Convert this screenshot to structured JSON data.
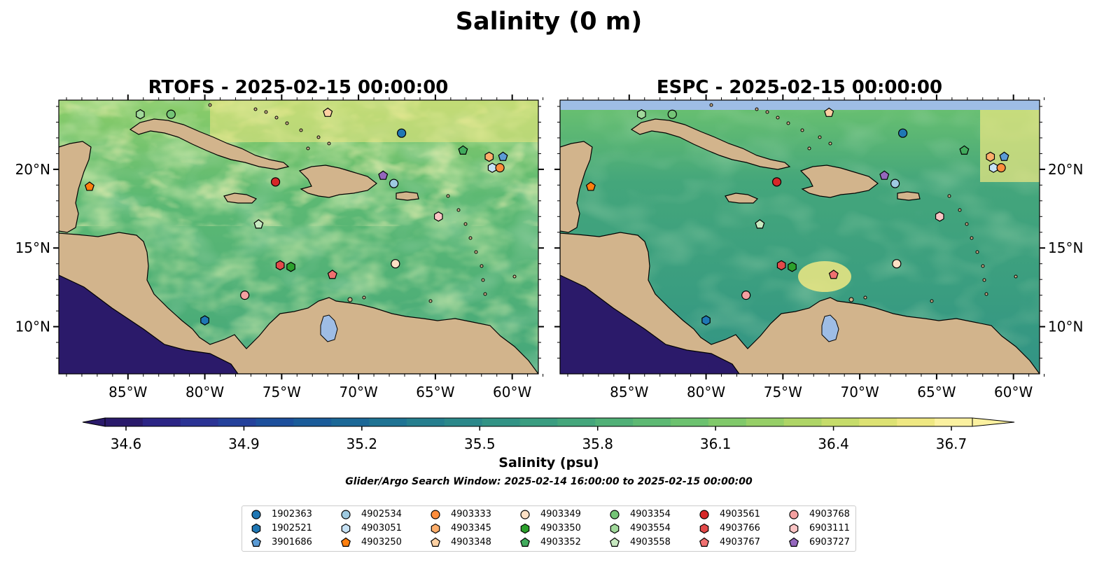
{
  "figure_title": "Salinity (0 m)",
  "panels": [
    {
      "title": "RTOFS - 2025-02-15 00:00:00"
    },
    {
      "title": "ESPC - 2025-02-15 00:00:00"
    }
  ],
  "lon_ticks": [
    "85°W",
    "80°W",
    "75°W",
    "70°W",
    "65°W",
    "60°W"
  ],
  "lat_ticks": [
    "20°N",
    "15°N",
    "10°N"
  ],
  "colorbar": {
    "label": "Salinity (psu)",
    "ticks": [
      "34.6",
      "34.9",
      "35.2",
      "35.5",
      "35.8",
      "36.1",
      "36.4",
      "36.7"
    ],
    "colors": [
      "#2a1a6b",
      "#2c2585",
      "#2b3394",
      "#24419b",
      "#1c4f9c",
      "#1a5c9a",
      "#1b6897",
      "#1f7393",
      "#257e8e",
      "#2b888a",
      "#329385",
      "#3a9d80",
      "#44a67b",
      "#50b077",
      "#5db973",
      "#6cc26f",
      "#80c96a",
      "#96cf67",
      "#aed566",
      "#c6dc6a",
      "#dde273",
      "#efe882",
      "#fbf1a0"
    ]
  },
  "search_window": "Glider/Argo Search Window: 2025-02-14 16:00:00 to 2025-02-15 00:00:00",
  "colors": {
    "land": "#d2b48c",
    "lake": "#9ebde5",
    "deep": "#2b1a6a"
  },
  "legend": [
    {
      "label": "1902363",
      "marker": "circle",
      "color": "#1f77b4"
    },
    {
      "label": "1902521",
      "marker": "hexagon",
      "color": "#1f77b4"
    },
    {
      "label": "3901686",
      "marker": "pentagon",
      "color": "#5b9bd5"
    },
    {
      "label": "4902534",
      "marker": "circle",
      "color": "#9ecae1"
    },
    {
      "label": "4903051",
      "marker": "hexagon",
      "color": "#c6e2f5"
    },
    {
      "label": "4903250",
      "marker": "pentagon",
      "color": "#ff7f0e"
    },
    {
      "label": "4903333",
      "marker": "circle",
      "color": "#fd8d3c"
    },
    {
      "label": "4903345",
      "marker": "hexagon",
      "color": "#fdae6b"
    },
    {
      "label": "4903348",
      "marker": "pentagon",
      "color": "#fdd0a2"
    },
    {
      "label": "4903349",
      "marker": "circle",
      "color": "#fde0c5"
    },
    {
      "label": "4903350",
      "marker": "hexagon",
      "color": "#2ca02c"
    },
    {
      "label": "4903352",
      "marker": "pentagon",
      "color": "#41ab5d"
    },
    {
      "label": "4903354",
      "marker": "circle",
      "color": "#74c476"
    },
    {
      "label": "4903554",
      "marker": "hexagon",
      "color": "#a1d99b"
    },
    {
      "label": "4903558",
      "marker": "pentagon",
      "color": "#c7e9c0"
    },
    {
      "label": "4903561",
      "marker": "circle",
      "color": "#d62728"
    },
    {
      "label": "4903766",
      "marker": "hexagon",
      "color": "#e34a4a"
    },
    {
      "label": "4903767",
      "marker": "pentagon",
      "color": "#f07070"
    },
    {
      "label": "4903768",
      "marker": "circle",
      "color": "#f4a0a0"
    },
    {
      "label": "6903111",
      "marker": "hexagon",
      "color": "#fbc4c4"
    },
    {
      "label": "6903727",
      "marker": "pentagon",
      "color": "#9467bd"
    }
  ],
  "markers": [
    {
      "lon": -67.2,
      "lat": 22.3,
      "legend": 0
    },
    {
      "lon": -80.0,
      "lat": 10.4,
      "legend": 1
    },
    {
      "lon": -60.6,
      "lat": 20.8,
      "legend": 2
    },
    {
      "lon": -67.7,
      "lat": 19.1,
      "legend": 3
    },
    {
      "lon": -61.3,
      "lat": 20.1,
      "legend": 4
    },
    {
      "lon": -87.5,
      "lat": 18.9,
      "legend": 5
    },
    {
      "lon": -60.8,
      "lat": 20.1,
      "legend": 6
    },
    {
      "lon": -61.5,
      "lat": 20.8,
      "legend": 7
    },
    {
      "lon": -72.0,
      "lat": 23.6,
      "legend": 8
    },
    {
      "lon": -67.6,
      "lat": 14.0,
      "legend": 9
    },
    {
      "lon": -74.4,
      "lat": 13.8,
      "legend": 10
    },
    {
      "lon": -63.2,
      "lat": 21.2,
      "legend": 11
    },
    {
      "lon": -82.2,
      "lat": 23.5,
      "legend": 12
    },
    {
      "lon": -84.2,
      "lat": 23.5,
      "legend": 13
    },
    {
      "lon": -76.5,
      "lat": 16.5,
      "legend": 14
    },
    {
      "lon": -75.4,
      "lat": 19.2,
      "legend": 15
    },
    {
      "lon": -75.1,
      "lat": 13.9,
      "legend": 16
    },
    {
      "lon": -71.7,
      "lat": 13.3,
      "legend": 17
    },
    {
      "lon": -77.4,
      "lat": 12.0,
      "legend": 18
    },
    {
      "lon": -64.8,
      "lat": 17.0,
      "legend": 19
    },
    {
      "lon": -68.4,
      "lat": 19.6,
      "legend": 20
    }
  ],
  "map_extent": {
    "lon": [
      -89.5,
      -58.3
    ],
    "lat": [
      7.0,
      24.4
    ]
  }
}
